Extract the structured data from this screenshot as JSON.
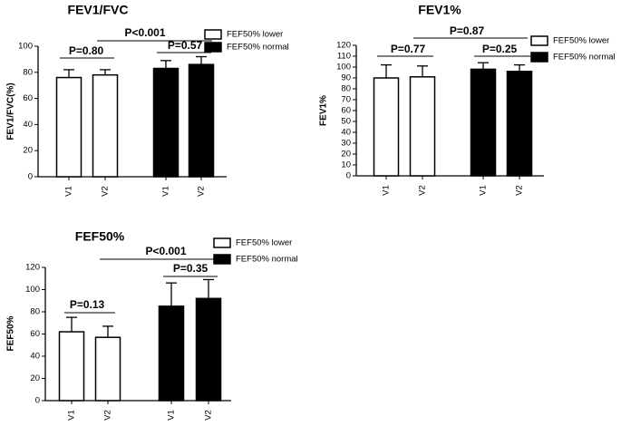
{
  "chart_data": [
    {
      "type": "bar",
      "title": "FEV1/FVC",
      "y_label": "FEV1/FVC(%)",
      "categories": [
        "V1",
        "V2",
        "V1",
        "V2"
      ],
      "series": [
        {
          "name": "FEF50% lower",
          "color": "#ffffff",
          "values": [
            76,
            78,
            null,
            null
          ],
          "errors": [
            6,
            4,
            null,
            null
          ]
        },
        {
          "name": "FEF50% normal",
          "color": "#000000",
          "values": [
            null,
            null,
            83,
            86
          ],
          "errors": [
            null,
            null,
            6,
            6
          ]
        }
      ],
      "annotations": [
        "P=0.80",
        "P<0.001",
        "P=0.57"
      ],
      "ylim": [
        0,
        100
      ],
      "yticks": [
        0,
        20,
        40,
        60,
        80,
        100
      ]
    },
    {
      "type": "bar",
      "title": "FEV1%",
      "y_label": "FEV1%",
      "categories": [
        "V1",
        "V2",
        "V1",
        "V2"
      ],
      "series": [
        {
          "name": "FEF50% lower",
          "color": "#ffffff",
          "values": [
            90,
            91,
            null,
            null
          ],
          "errors": [
            12,
            10,
            null,
            null
          ]
        },
        {
          "name": "FEF50% normal",
          "color": "#000000",
          "values": [
            null,
            null,
            98,
            96
          ],
          "errors": [
            null,
            null,
            6,
            6
          ]
        }
      ],
      "annotations": [
        "P=0.77",
        "P=0.87",
        "P=0.25"
      ],
      "ylim": [
        0,
        120
      ],
      "yticks": [
        0,
        10,
        20,
        30,
        40,
        50,
        60,
        70,
        80,
        90,
        100,
        110,
        120
      ]
    },
    {
      "type": "bar",
      "title": "FEF50%",
      "y_label": "FEF50%",
      "categories": [
        "V1",
        "V2",
        "V1",
        "V2"
      ],
      "series": [
        {
          "name": "FEF50% lower",
          "color": "#ffffff",
          "values": [
            62,
            57,
            null,
            null
          ],
          "errors": [
            13,
            10,
            null,
            null
          ]
        },
        {
          "name": "FEF50% normal",
          "color": "#000000",
          "values": [
            null,
            null,
            85,
            92
          ],
          "errors": [
            null,
            null,
            21,
            17
          ]
        }
      ],
      "annotations": [
        "P=0.13",
        "P<0.001",
        "P=0.35"
      ],
      "ylim": [
        0,
        120
      ],
      "yticks": [
        0,
        20,
        40,
        60,
        80,
        100,
        120
      ]
    }
  ]
}
